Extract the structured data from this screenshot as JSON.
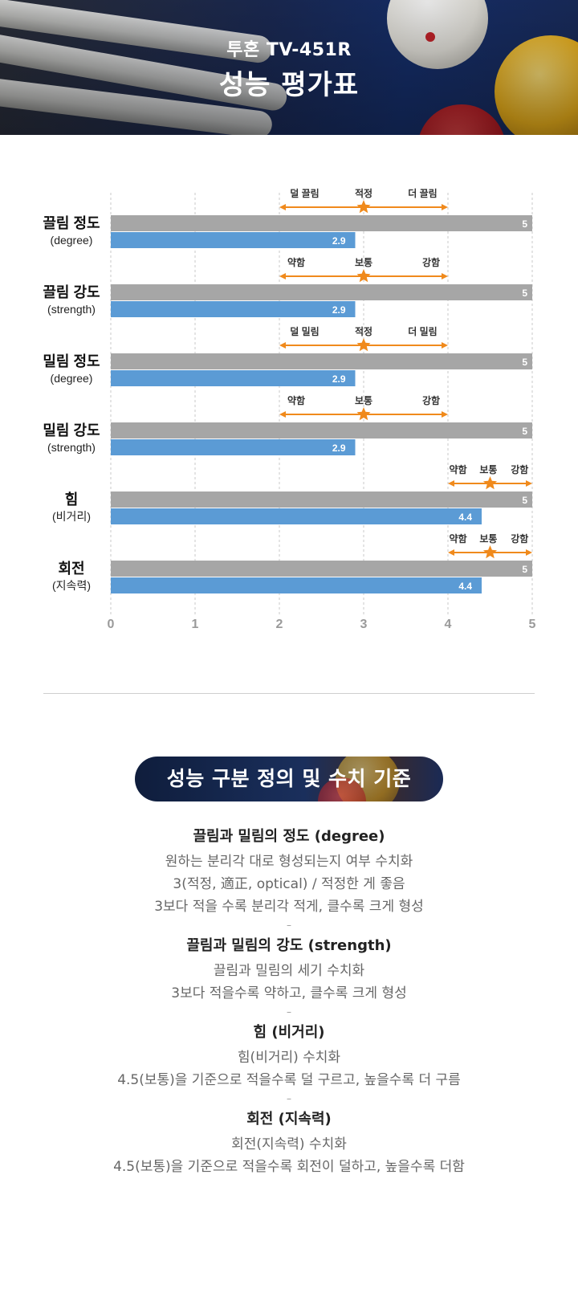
{
  "header": {
    "product": "투혼 TV-451R",
    "title": "성능 평가표"
  },
  "chart_data": {
    "type": "bar",
    "orientation": "horizontal",
    "xlim": [
      0,
      5
    ],
    "xticks": [
      0,
      1,
      2,
      3,
      4,
      5
    ],
    "grid": "vertical-dashed",
    "colors": {
      "max": "#a6a6a6",
      "value": "#5b9bd5",
      "marker": "#f08a1c",
      "text": "#ffffff"
    },
    "rows": [
      {
        "label": "끌림 정도",
        "sublabel": "(degree)",
        "max": 5,
        "value": 2.9,
        "scale": {
          "range": [
            2,
            4
          ],
          "marker": 3,
          "labels": [
            {
              "at": 2.3,
              "text": "덜 끌림"
            },
            {
              "at": 3,
              "text": "적정"
            },
            {
              "at": 3.7,
              "text": "더 끌림"
            }
          ]
        }
      },
      {
        "label": "끌림 강도",
        "sublabel": "(strength)",
        "max": 5,
        "value": 2.9,
        "scale": {
          "range": [
            2,
            4
          ],
          "marker": 3,
          "labels": [
            {
              "at": 2.2,
              "text": "약함"
            },
            {
              "at": 3,
              "text": "보통"
            },
            {
              "at": 3.8,
              "text": "강함"
            }
          ]
        }
      },
      {
        "label": "밀림 정도",
        "sublabel": "(degree)",
        "max": 5,
        "value": 2.9,
        "scale": {
          "range": [
            2,
            4
          ],
          "marker": 3,
          "labels": [
            {
              "at": 2.3,
              "text": "덜 밀림"
            },
            {
              "at": 3,
              "text": "적정"
            },
            {
              "at": 3.7,
              "text": "더 밀림"
            }
          ]
        }
      },
      {
        "label": "밀림 강도",
        "sublabel": "(strength)",
        "max": 5,
        "value": 2.9,
        "scale": {
          "range": [
            2,
            4
          ],
          "marker": 3,
          "labels": [
            {
              "at": 2.2,
              "text": "약함"
            },
            {
              "at": 3,
              "text": "보통"
            },
            {
              "at": 3.8,
              "text": "강함"
            }
          ]
        }
      },
      {
        "label": "힘",
        "sublabel": "(비거리)",
        "max": 5,
        "value": 4.4,
        "scale": {
          "range": [
            4,
            5
          ],
          "marker": 4.5,
          "labels": [
            {
              "at": 4.12,
              "text": "약함"
            },
            {
              "at": 4.48,
              "text": "보통"
            },
            {
              "at": 4.85,
              "text": "강함"
            }
          ]
        }
      },
      {
        "label": "회전",
        "sublabel": "(지속력)",
        "max": 5,
        "value": 4.4,
        "scale": {
          "range": [
            4,
            5
          ],
          "marker": 4.5,
          "labels": [
            {
              "at": 4.12,
              "text": "약함"
            },
            {
              "at": 4.48,
              "text": "보통"
            },
            {
              "at": 4.85,
              "text": "강함"
            }
          ]
        }
      }
    ]
  },
  "definitions": {
    "heading": "성능 구분 정의 및 수치 기준",
    "sections": [
      {
        "title": "끌림과 밀림의 정도 (degree)",
        "lines": [
          "원하는 분리각 대로 형성되는지 여부 수치화",
          "3(적정, 適正, optical) / 적정한 게 좋음",
          "3보다 적을 수록 분리각 적게, 클수록 크게 형성"
        ]
      },
      {
        "title": "끌림과 밀림의 강도 (strength)",
        "lines": [
          "끌림과 밀림의 세기 수치화",
          "3보다 적을수록 약하고, 클수록 크게 형성"
        ]
      },
      {
        "title": "힘 (비거리)",
        "lines": [
          "힘(비거리) 수치화",
          "4.5(보통)을 기준으로 적을수록 덜 구르고, 높을수록 더 구름"
        ]
      },
      {
        "title": "회전 (지속력)",
        "lines": [
          "회전(지속력) 수치화",
          "4.5(보통)을 기준으로 적을수록 회전이 덜하고, 높을수록 더함"
        ]
      }
    ],
    "separator": "–"
  }
}
